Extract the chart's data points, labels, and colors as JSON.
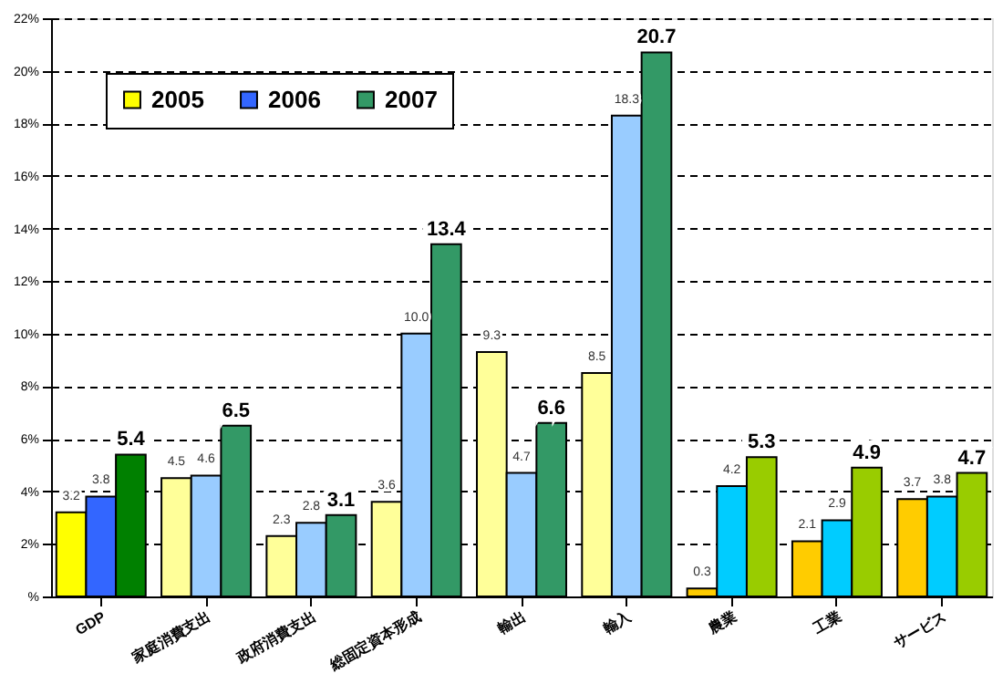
{
  "chart_data": {
    "type": "bar",
    "categories": [
      "GDP",
      "家庭消費支出",
      "政府消費支出",
      "総固定資本形成",
      "輸出",
      "輸入",
      "農業",
      "工業",
      "サービス"
    ],
    "series": [
      {
        "name": "2005",
        "color": "#ffff00",
        "colors": [
          "#ffff00",
          "#ffff99",
          "#ffff99",
          "#ffff99",
          "#ffff99",
          "#ffff99",
          "#ffcc00",
          "#ffcc00",
          "#ffcc00"
        ],
        "values": [
          3.2,
          4.5,
          2.3,
          3.6,
          9.3,
          8.5,
          0.3,
          2.1,
          3.7
        ],
        "value_labels": [
          "3.2",
          "4.5",
          "2.3",
          "3.6",
          "9.3",
          "8.5",
          "0.3",
          "2.1",
          "3.7"
        ]
      },
      {
        "name": "2006",
        "color": "#3366ff",
        "colors": [
          "#3366ff",
          "#99ccff",
          "#99ccff",
          "#99ccff",
          "#99ccff",
          "#99ccff",
          "#00ccff",
          "#00ccff",
          "#00ccff"
        ],
        "values": [
          3.8,
          4.6,
          2.8,
          10.0,
          4.7,
          18.3,
          4.2,
          2.9,
          3.8
        ],
        "value_labels": [
          "3.8",
          "4.6",
          "2.8",
          "10.0",
          "4.7",
          "18.3",
          "4.2",
          "2.9",
          "3.8"
        ]
      },
      {
        "name": "2007",
        "color": "#339966",
        "colors": [
          "#008000",
          "#339966",
          "#339966",
          "#339966",
          "#339966",
          "#339966",
          "#99cc00",
          "#99cc00",
          "#99cc00"
        ],
        "values": [
          5.4,
          6.5,
          3.1,
          13.4,
          6.6,
          20.7,
          5.3,
          4.9,
          4.7
        ],
        "value_labels": [
          "5.4",
          "6.5",
          "3.1",
          "13.4",
          "6.6",
          "20.7",
          "5.3",
          "4.9",
          "4.7"
        ]
      }
    ],
    "ylim": [
      0,
      22
    ],
    "yticks": [
      {
        "value": 0,
        "label": "%"
      },
      {
        "value": 2,
        "label": "2%"
      },
      {
        "value": 4,
        "label": "4%"
      },
      {
        "value": 6,
        "label": "6%"
      },
      {
        "value": 8,
        "label": "8%"
      },
      {
        "value": 10,
        "label": "10%"
      },
      {
        "value": 12,
        "label": "12%"
      },
      {
        "value": 14,
        "label": "14%"
      },
      {
        "value": 16,
        "label": "16%"
      },
      {
        "value": 18,
        "label": "18%"
      },
      {
        "value": 20,
        "label": "20%"
      },
      {
        "value": 22,
        "label": "22%"
      }
    ],
    "grid": "y",
    "legend": "top left"
  }
}
